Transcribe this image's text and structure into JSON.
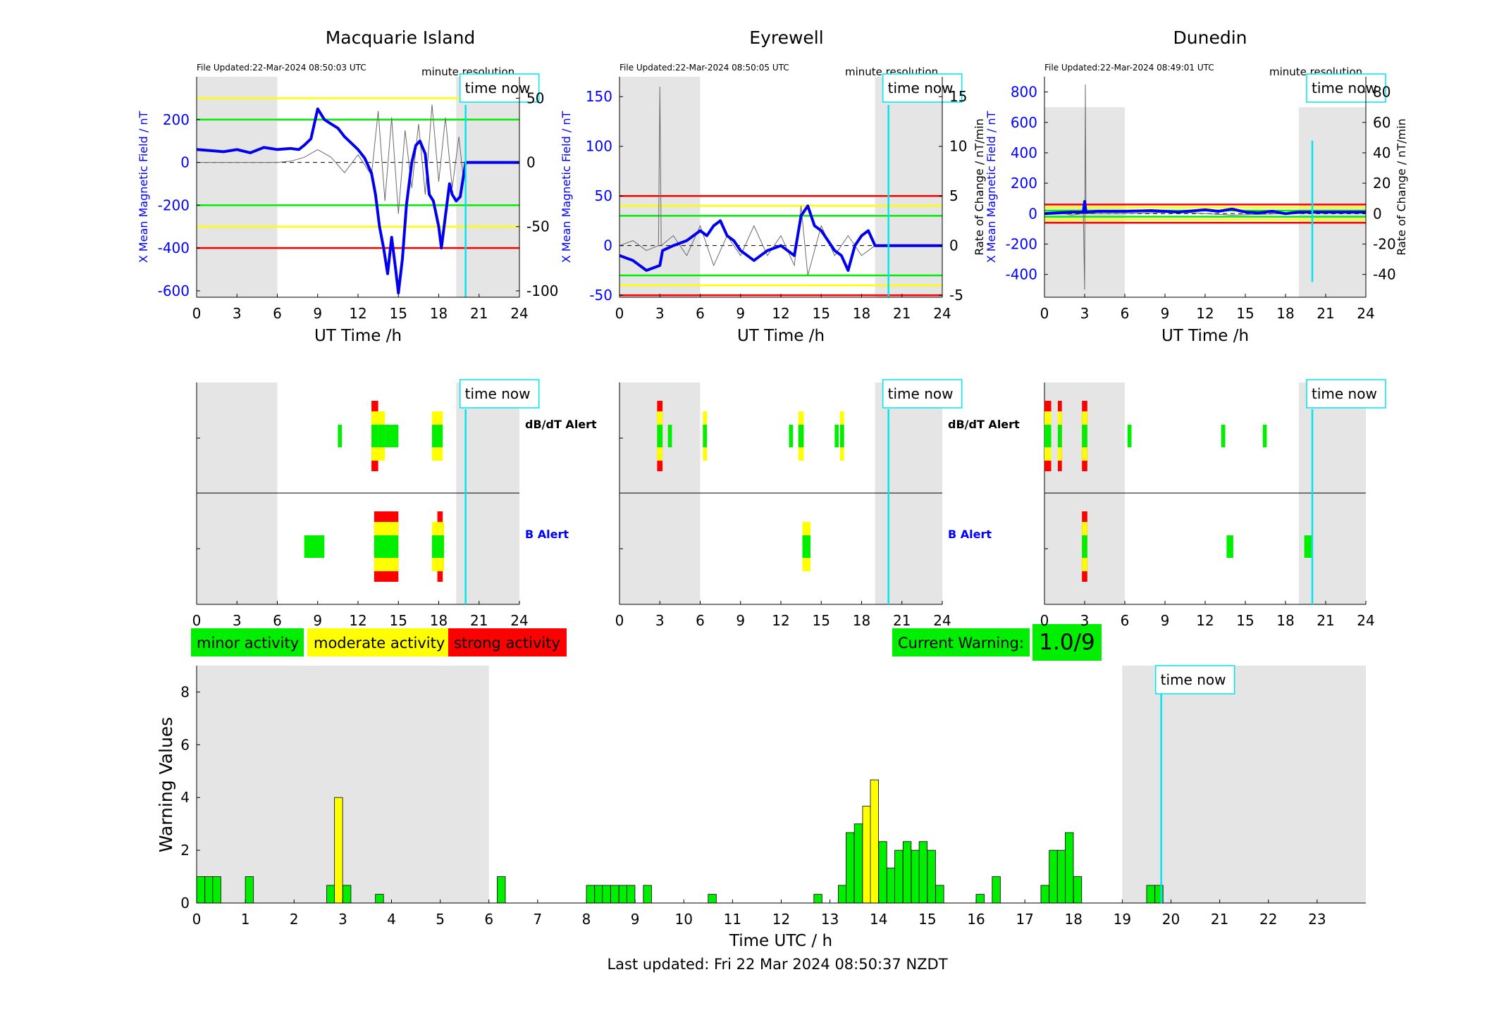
{
  "stations": [
    {
      "name": "Macquarie Island",
      "file_updated": "File Updated:22-Mar-2024 08:50:03 UTC",
      "resolution": "minute resolution",
      "time_now_label": "time now",
      "time_now_h": 20,
      "ylabel_left": "X Mean Magnetic Field / nT",
      "ylabel_right": "",
      "xlabel": "UT Time /h",
      "xticks": [
        0,
        3,
        6,
        9,
        12,
        15,
        18,
        21,
        24
      ],
      "ylim_left": [
        -630,
        400
      ],
      "yticks_left": [
        -600,
        -400,
        -200,
        0,
        200
      ],
      "ylim_right": [
        -105,
        66.7
      ],
      "yticks_right": [
        -100,
        -50,
        0,
        50
      ],
      "thresholds_nT": [
        {
          "value": 300,
          "color": "#ffff00"
        },
        {
          "value": 200,
          "color": "#00ee00"
        },
        {
          "value": -200,
          "color": "#00ee00"
        },
        {
          "value": -300,
          "color": "#ffff00"
        },
        {
          "value": -400,
          "color": "#ff0000"
        }
      ],
      "shade_ranges_h": [
        [
          0,
          6
        ],
        [
          19.3,
          24
        ]
      ],
      "x_mean_series": {
        "x": [
          0,
          1,
          2,
          3,
          4,
          5,
          6,
          7,
          7.6,
          8,
          8.5,
          9,
          9.5,
          10,
          10.5,
          11,
          11.5,
          12,
          12.5,
          13,
          13.3,
          13.6,
          13.9,
          14.2,
          14.5,
          14.8,
          15,
          15.3,
          15.6,
          16,
          16.3,
          16.6,
          17,
          17.3,
          17.6,
          18,
          18.2,
          18.5,
          18.8,
          19,
          19.3,
          19.6,
          20,
          21,
          22,
          23,
          24
        ],
        "y": [
          60,
          55,
          50,
          60,
          45,
          70,
          60,
          65,
          60,
          80,
          110,
          250,
          200,
          180,
          160,
          120,
          90,
          60,
          20,
          -50,
          -150,
          -300,
          -400,
          -520,
          -350,
          -500,
          -610,
          -450,
          -200,
          0,
          80,
          100,
          40,
          -150,
          -180,
          -300,
          -400,
          -250,
          -100,
          -150,
          -180,
          -160,
          0,
          0,
          0,
          0,
          0
        ]
      },
      "rate_series": {
        "x": [
          0,
          2,
          4,
          6,
          7,
          8,
          9,
          10,
          11,
          12,
          13,
          13.5,
          14,
          14.5,
          15,
          15.5,
          16,
          16.5,
          17,
          17.5,
          18,
          18.5,
          19,
          19.5,
          19.8
        ],
        "y": [
          0,
          0,
          0,
          0,
          1,
          4,
          10,
          4,
          -8,
          6,
          -10,
          40,
          -30,
          35,
          -40,
          25,
          -20,
          30,
          -25,
          45,
          -15,
          35,
          -20,
          20,
          -10
        ]
      },
      "dbdt_alert": [
        {
          "t0": 10.5,
          "t1": 10.8,
          "levels": [
            "green"
          ]
        },
        {
          "t0": 13.0,
          "t1": 13.5,
          "levels": [
            "green",
            "yellow",
            "red"
          ]
        },
        {
          "t0": 13.5,
          "t1": 14.0,
          "levels": [
            "green",
            "yellow"
          ]
        },
        {
          "t0": 14.0,
          "t1": 15.0,
          "levels": [
            "green"
          ]
        },
        {
          "t0": 17.5,
          "t1": 18.3,
          "levels": [
            "green",
            "yellow"
          ]
        }
      ],
      "b_alert": [
        {
          "t0": 8.0,
          "t1": 9.5,
          "levels": [
            "green"
          ]
        },
        {
          "t0": 13.2,
          "t1": 15.0,
          "levels": [
            "green",
            "yellow",
            "red"
          ]
        },
        {
          "t0": 17.5,
          "t1": 18.4,
          "levels": [
            "green",
            "yellow"
          ]
        },
        {
          "t0": 17.9,
          "t1": 18.3,
          "levels": [
            "green",
            "yellow",
            "red"
          ]
        }
      ]
    },
    {
      "name": "Eyrewell",
      "file_updated": "File Updated:22-Mar-2024 08:50:05 UTC",
      "resolution": "minute resolution",
      "time_now_label": "time now",
      "time_now_h": 20,
      "ylabel_left": "X Mean Magnetic Field / nT",
      "ylabel_right": "Rate of Change / nT/min",
      "xlabel": "UT Time /h",
      "xticks": [
        0,
        3,
        6,
        9,
        12,
        15,
        18,
        21,
        24
      ],
      "ylim_left": [
        -52,
        170
      ],
      "yticks_left": [
        -50,
        0,
        50,
        100,
        150
      ],
      "ylim_right": [
        -5.2,
        17
      ],
      "yticks_right": [
        -5,
        0,
        5,
        10,
        15
      ],
      "thresholds_nT": [
        {
          "value": 50,
          "color": "#ff0000"
        },
        {
          "value": 40,
          "color": "#ffff00"
        },
        {
          "value": 30,
          "color": "#00ee00"
        },
        {
          "value": -30,
          "color": "#00ee00"
        },
        {
          "value": -40,
          "color": "#ffff00"
        },
        {
          "value": -50,
          "color": "#ff0000"
        }
      ],
      "shade_ranges_h": [
        [
          0,
          6
        ],
        [
          19,
          24
        ]
      ],
      "x_mean_series": {
        "x": [
          0,
          1,
          2,
          3,
          3.2,
          4,
          5,
          6,
          6.5,
          7,
          7.5,
          8,
          8.5,
          9,
          10,
          11,
          12,
          13,
          13.5,
          14,
          14.5,
          15,
          15.5,
          16,
          16.5,
          17,
          17.5,
          18,
          18.5,
          19,
          20,
          21,
          22,
          23,
          24
        ],
        "y": [
          -10,
          -15,
          -25,
          -20,
          -5,
          0,
          5,
          15,
          10,
          20,
          25,
          10,
          5,
          -5,
          -15,
          -5,
          0,
          -10,
          30,
          40,
          20,
          15,
          5,
          -5,
          -10,
          -25,
          0,
          10,
          15,
          0,
          0,
          0,
          0,
          0,
          0
        ]
      },
      "rate_series": {
        "x": [
          0,
          1,
          2,
          2.9,
          3,
          3.1,
          4,
          5,
          6,
          7,
          8,
          9,
          10,
          11,
          12,
          13,
          13.5,
          14,
          15,
          16,
          17,
          18,
          19
        ],
        "y": [
          0,
          0.5,
          -0.5,
          0,
          16,
          0,
          1,
          -1,
          2,
          -2,
          1,
          -1,
          2,
          -1,
          1,
          -2,
          4,
          -3,
          2,
          -1,
          1,
          -1,
          0
        ]
      },
      "dbdt_alert": [
        {
          "t0": 2.8,
          "t1": 3.2,
          "levels": [
            "green",
            "yellow",
            "red"
          ]
        },
        {
          "t0": 3.6,
          "t1": 3.9,
          "levels": [
            "green"
          ]
        },
        {
          "t0": 6.2,
          "t1": 6.5,
          "levels": [
            "green",
            "yellow"
          ]
        },
        {
          "t0": 12.6,
          "t1": 12.9,
          "levels": [
            "green"
          ]
        },
        {
          "t0": 13.3,
          "t1": 13.7,
          "levels": [
            "green",
            "yellow"
          ]
        },
        {
          "t0": 16.0,
          "t1": 16.3,
          "levels": [
            "green"
          ]
        },
        {
          "t0": 16.4,
          "t1": 16.7,
          "levels": [
            "green",
            "yellow"
          ]
        }
      ],
      "b_alert": [
        {
          "t0": 13.6,
          "t1": 14.2,
          "levels": [
            "green",
            "yellow"
          ]
        }
      ]
    },
    {
      "name": "Dunedin",
      "file_updated": "File Updated:22-Mar-2024 08:49:01 UTC",
      "resolution": "minute resolution",
      "time_now_label": "time now",
      "time_now_h": 20,
      "ylabel_left": "X Mean Magnetic Field / nT",
      "ylabel_right": "Rate of Change / nT/min",
      "xlabel": "UT Time /h",
      "xticks": [
        0,
        3,
        6,
        9,
        12,
        15,
        18,
        21,
        24
      ],
      "ylim_left": [
        -550,
        900
      ],
      "yticks_left": [
        -400,
        -200,
        0,
        200,
        400,
        600,
        800
      ],
      "ylim_right": [
        -55,
        90
      ],
      "yticks_right": [
        -40,
        -20,
        0,
        20,
        40,
        60,
        80
      ],
      "thresholds_nT": [
        {
          "value": 60,
          "color": "#ff0000"
        },
        {
          "value": 40,
          "color": "#ffff00"
        },
        {
          "value": 20,
          "color": "#00ee00"
        },
        {
          "value": -20,
          "color": "#00ee00"
        },
        {
          "value": -40,
          "color": "#ffff00"
        },
        {
          "value": -60,
          "color": "#ff0000"
        }
      ],
      "shade_ranges_h": [
        [
          0,
          6
        ],
        [
          19,
          24
        ]
      ],
      "shade_top_nT": 700,
      "x_mean_series": {
        "x": [
          0,
          1,
          2,
          2.9,
          3,
          3.1,
          4,
          6,
          8,
          10,
          12,
          13,
          14,
          15,
          16,
          17,
          18,
          19,
          20,
          21,
          22,
          23,
          24
        ],
        "y": [
          0,
          5,
          10,
          10,
          80,
          10,
          15,
          15,
          20,
          10,
          25,
          15,
          30,
          10,
          5,
          15,
          0,
          10,
          10,
          10,
          10,
          10,
          10
        ]
      },
      "rate_series": {
        "x": [
          0,
          1,
          2,
          2.9,
          3,
          3.05,
          3.1,
          4,
          6,
          10,
          14,
          18,
          19.3
        ],
        "y": [
          0,
          1,
          -1,
          0,
          -50,
          85,
          0,
          0,
          0,
          1,
          -1,
          0,
          0
        ]
      },
      "time_now_line_range_right": [
        -45,
        48
      ],
      "dbdt_alert": [
        {
          "t0": 0.0,
          "t1": 0.5,
          "levels": [
            "green",
            "yellow",
            "red"
          ]
        },
        {
          "t0": 1.0,
          "t1": 1.3,
          "levels": [
            "green",
            "yellow",
            "red"
          ]
        },
        {
          "t0": 2.8,
          "t1": 3.2,
          "levels": [
            "green",
            "yellow",
            "red"
          ]
        },
        {
          "t0": 6.2,
          "t1": 6.5,
          "levels": [
            "green"
          ]
        },
        {
          "t0": 13.2,
          "t1": 13.5,
          "levels": [
            "green"
          ]
        },
        {
          "t0": 16.3,
          "t1": 16.6,
          "levels": [
            "green"
          ]
        }
      ],
      "b_alert": [
        {
          "t0": 2.8,
          "t1": 3.2,
          "levels": [
            "green",
            "yellow",
            "red"
          ]
        },
        {
          "t0": 13.6,
          "t1": 14.1,
          "levels": [
            "green"
          ]
        },
        {
          "t0": 19.4,
          "t1": 20.0,
          "levels": [
            "green"
          ]
        }
      ]
    }
  ],
  "alert_rows": {
    "dbdt": "dB/dT Alert",
    "b": "B Alert"
  },
  "legend": {
    "minor": "minor activity",
    "moderate": "moderate activity",
    "strong": "strong activity"
  },
  "current_warning": {
    "label": "Current Warning:",
    "value": "1.0/9"
  },
  "chart_data": {
    "type": "bar",
    "ylabel": "Warning Values",
    "xlabel": "Time UTC / h",
    "xlim": [
      0,
      24
    ],
    "ylim": [
      0,
      9
    ],
    "yticks": [
      0,
      2,
      4,
      6,
      8
    ],
    "xticks": [
      0,
      1,
      2,
      3,
      4,
      5,
      6,
      7,
      8,
      9,
      10,
      11,
      12,
      13,
      14,
      15,
      16,
      17,
      18,
      19,
      20,
      21,
      22,
      23
    ],
    "shade_ranges_h": [
      [
        0,
        6
      ],
      [
        19,
        24
      ]
    ],
    "time_now_h": 19.8,
    "time_now_label": "time now",
    "bin_width_h": 0.1667,
    "bars": [
      {
        "t": 0.0,
        "v": 1,
        "c": "green"
      },
      {
        "t": 0.17,
        "v": 1,
        "c": "green"
      },
      {
        "t": 0.33,
        "v": 1,
        "c": "green"
      },
      {
        "t": 1.0,
        "v": 1,
        "c": "green"
      },
      {
        "t": 2.67,
        "v": 0.67,
        "c": "green"
      },
      {
        "t": 2.83,
        "v": 4,
        "c": "yellow"
      },
      {
        "t": 3.0,
        "v": 0.67,
        "c": "green"
      },
      {
        "t": 3.67,
        "v": 0.33,
        "c": "green"
      },
      {
        "t": 6.17,
        "v": 1,
        "c": "green"
      },
      {
        "t": 8.0,
        "v": 0.67,
        "c": "green"
      },
      {
        "t": 8.17,
        "v": 0.67,
        "c": "green"
      },
      {
        "t": 8.33,
        "v": 0.67,
        "c": "green"
      },
      {
        "t": 8.5,
        "v": 0.67,
        "c": "green"
      },
      {
        "t": 8.67,
        "v": 0.67,
        "c": "green"
      },
      {
        "t": 8.83,
        "v": 0.67,
        "c": "green"
      },
      {
        "t": 9.17,
        "v": 0.67,
        "c": "green"
      },
      {
        "t": 10.5,
        "v": 0.33,
        "c": "green"
      },
      {
        "t": 12.67,
        "v": 0.33,
        "c": "green"
      },
      {
        "t": 13.17,
        "v": 0.67,
        "c": "green"
      },
      {
        "t": 13.33,
        "v": 2.67,
        "c": "green"
      },
      {
        "t": 13.5,
        "v": 3,
        "c": "green"
      },
      {
        "t": 13.67,
        "v": 3.67,
        "c": "yellow"
      },
      {
        "t": 13.83,
        "v": 4.67,
        "c": "yellow"
      },
      {
        "t": 14.0,
        "v": 2.33,
        "c": "green"
      },
      {
        "t": 14.17,
        "v": 1.33,
        "c": "green"
      },
      {
        "t": 14.33,
        "v": 2,
        "c": "green"
      },
      {
        "t": 14.5,
        "v": 2.33,
        "c": "green"
      },
      {
        "t": 14.67,
        "v": 2,
        "c": "green"
      },
      {
        "t": 14.83,
        "v": 2.33,
        "c": "green"
      },
      {
        "t": 15.0,
        "v": 2,
        "c": "green"
      },
      {
        "t": 15.17,
        "v": 0.67,
        "c": "green"
      },
      {
        "t": 16.0,
        "v": 0.33,
        "c": "green"
      },
      {
        "t": 16.33,
        "v": 1,
        "c": "green"
      },
      {
        "t": 17.33,
        "v": 0.67,
        "c": "green"
      },
      {
        "t": 17.5,
        "v": 2,
        "c": "green"
      },
      {
        "t": 17.67,
        "v": 2,
        "c": "green"
      },
      {
        "t": 17.83,
        "v": 2.67,
        "c": "green"
      },
      {
        "t": 18.0,
        "v": 1,
        "c": "green"
      },
      {
        "t": 19.5,
        "v": 0.67,
        "c": "green"
      },
      {
        "t": 19.67,
        "v": 0.67,
        "c": "green"
      }
    ]
  },
  "last_updated": "Last updated: Fri 22 Mar 2024 08:50:37 NZDT",
  "colors": {
    "green": "#00ee00",
    "yellow": "#ffff00",
    "red": "#ff0000",
    "cyan": "#00e5ee",
    "series_blue": "#0000ee",
    "shade": "#e5e5e5",
    "axis_blue": "#0000ff"
  }
}
